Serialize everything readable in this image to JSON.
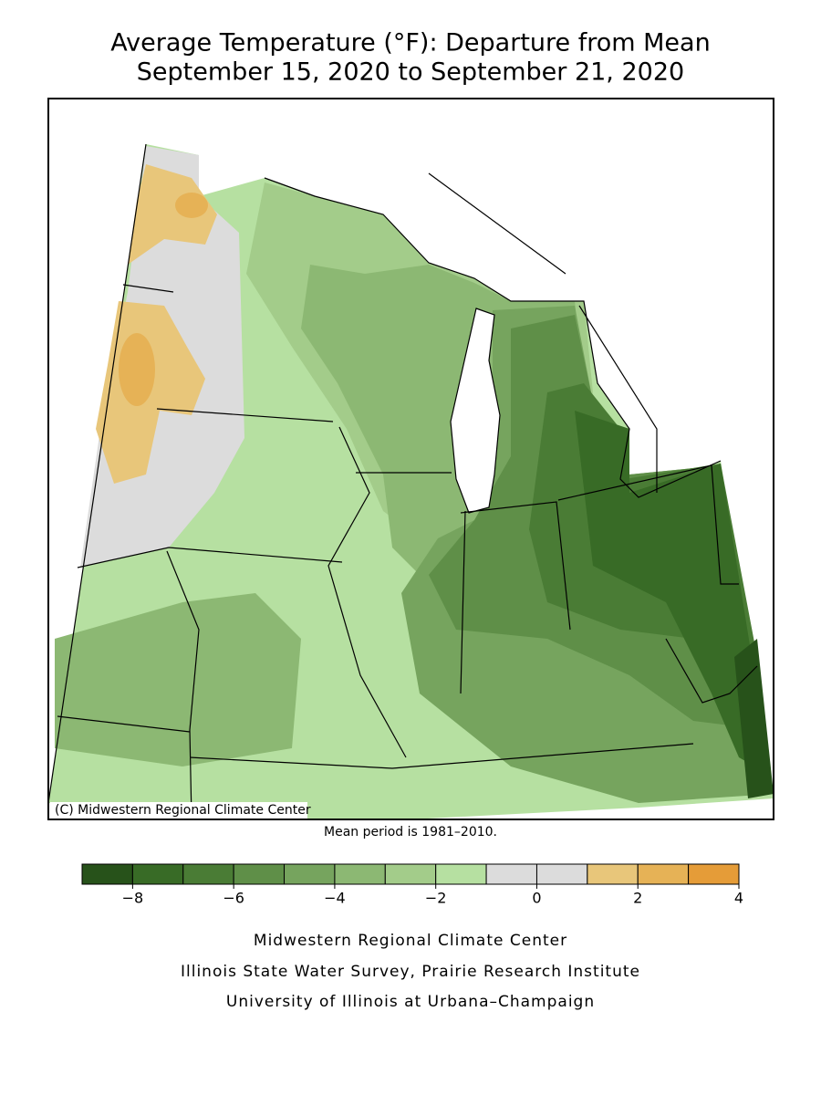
{
  "title": [
    "Average Temperature (°F): Departure from Mean",
    "September 15, 2020 to September 21, 2020"
  ],
  "copyright": "(C) Midwestern Regional Climate Center",
  "note": "Mean period is 1981–2010.",
  "legend": {
    "bins": [
      -9,
      -8,
      -7,
      -6,
      -5,
      -4,
      -3,
      -2,
      -1,
      0,
      1,
      2,
      3,
      4
    ],
    "colors": [
      "#27521a",
      "#386b26",
      "#4a7c35",
      "#5f8f48",
      "#76a45e",
      "#8cb873",
      "#a3cc8a",
      "#b6e0a1",
      "#dcdcdc",
      "#dcdcdc",
      "#e8c67a",
      "#e6b256",
      "#e59c38"
    ],
    "ticks": [
      {
        "value": -8,
        "label": "−8"
      },
      {
        "value": -6,
        "label": "−6"
      },
      {
        "value": -4,
        "label": "−4"
      },
      {
        "value": -2,
        "label": "−2"
      },
      0,
      2,
      4
    ]
  },
  "footer": [
    "Midwestern Regional Climate Center",
    "Illinois State Water Survey, Prairie Research Institute",
    "University of Illinois at Urbana–Champaign"
  ]
}
